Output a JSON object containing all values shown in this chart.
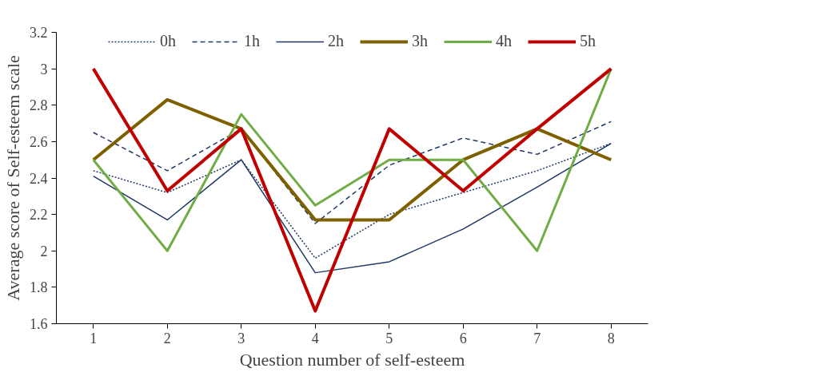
{
  "chart_data": {
    "type": "line",
    "xlabel": "Question number of self-esteem",
    "ylabel": "Average score of Self-esteem scale",
    "categories": [
      "1",
      "2",
      "3",
      "4",
      "5",
      "6",
      "7",
      "8"
    ],
    "ylim": [
      1.6,
      3.2
    ],
    "yticks": [
      1.6,
      1.8,
      2,
      2.2,
      2.4,
      2.6,
      2.8,
      3,
      3.2
    ],
    "grid": false,
    "legend": "top",
    "marker": "none",
    "series": [
      {
        "name": "0h",
        "color": "#1f3864",
        "line_style": "dotted",
        "values": [
          2.44,
          2.32,
          2.5,
          1.96,
          2.2,
          2.32,
          2.44,
          2.59
        ]
      },
      {
        "name": "1h",
        "color": "#1f3864",
        "line_style": "dashed",
        "values": [
          2.65,
          2.44,
          2.67,
          2.15,
          2.47,
          2.62,
          2.53,
          2.71
        ]
      },
      {
        "name": "2h",
        "color": "#1f3864",
        "line_style": "solid",
        "values": [
          2.41,
          2.17,
          2.5,
          1.88,
          1.94,
          2.12,
          2.35,
          2.59
        ]
      },
      {
        "name": "3h",
        "color": "#7f6000",
        "line_style": "solid",
        "values": [
          2.5,
          2.83,
          2.67,
          2.17,
          2.17,
          2.5,
          2.67,
          2.5
        ]
      },
      {
        "name": "4h",
        "color": "#70ad47",
        "line_style": "solid",
        "values": [
          2.5,
          2.0,
          2.75,
          2.25,
          2.5,
          2.5,
          2.0,
          3.0
        ]
      },
      {
        "name": "5h",
        "color": "#c00000",
        "line_style": "solid",
        "values": [
          3.0,
          2.33,
          2.67,
          1.67,
          2.67,
          2.33,
          2.67,
          3.0
        ]
      }
    ]
  }
}
